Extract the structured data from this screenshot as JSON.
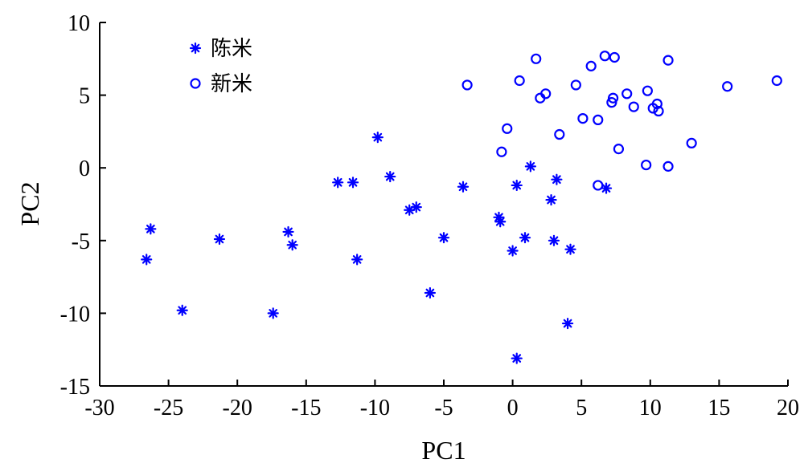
{
  "chart_data": {
    "type": "scatter",
    "xlabel": "PC1",
    "ylabel": "PC2",
    "xlim": [
      -30,
      20
    ],
    "ylim": [
      -15,
      10
    ],
    "xticks": [
      -30,
      -25,
      -20,
      -15,
      -10,
      -5,
      0,
      5,
      10,
      15,
      20
    ],
    "yticks": [
      -15,
      -10,
      -5,
      0,
      5,
      10
    ],
    "grid": false,
    "legend_position": "top-left",
    "colors": {
      "marker": "#0000ff",
      "axis": "#000000"
    },
    "series": [
      {
        "name": "陈米",
        "marker": "asterisk",
        "points": [
          [
            -26.6,
            -6.3
          ],
          [
            -26.3,
            -4.2
          ],
          [
            -24.0,
            -9.8
          ],
          [
            -21.3,
            -4.9
          ],
          [
            -17.4,
            -10.0
          ],
          [
            -16.3,
            -4.4
          ],
          [
            -16.0,
            -5.3
          ],
          [
            -12.7,
            -1.0
          ],
          [
            -11.6,
            -1.0
          ],
          [
            -11.3,
            -6.3
          ],
          [
            -9.8,
            2.1
          ],
          [
            -8.9,
            -0.6
          ],
          [
            -7.5,
            -2.9
          ],
          [
            -7.0,
            -2.7
          ],
          [
            -6.0,
            -8.6
          ],
          [
            -5.0,
            -4.8
          ],
          [
            -3.6,
            -1.3
          ],
          [
            -1.0,
            -3.4
          ],
          [
            -0.9,
            -3.7
          ],
          [
            0.0,
            -5.7
          ],
          [
            0.3,
            -1.2
          ],
          [
            0.3,
            -13.1
          ],
          [
            0.9,
            -4.8
          ],
          [
            1.3,
            0.1
          ],
          [
            2.8,
            -2.2
          ],
          [
            3.0,
            -5.0
          ],
          [
            3.2,
            -0.8
          ],
          [
            4.0,
            -10.7
          ],
          [
            4.2,
            -5.6
          ],
          [
            6.8,
            -1.4
          ]
        ]
      },
      {
        "name": "新米",
        "marker": "circle",
        "points": [
          [
            -3.3,
            5.7
          ],
          [
            -0.8,
            1.1
          ],
          [
            -0.4,
            2.7
          ],
          [
            0.5,
            6.0
          ],
          [
            1.7,
            7.5
          ],
          [
            2.0,
            4.8
          ],
          [
            2.4,
            5.1
          ],
          [
            3.4,
            2.3
          ],
          [
            4.6,
            5.7
          ],
          [
            5.1,
            3.4
          ],
          [
            5.7,
            7.0
          ],
          [
            6.2,
            3.3
          ],
          [
            6.2,
            -1.2
          ],
          [
            6.7,
            7.7
          ],
          [
            7.2,
            4.5
          ],
          [
            7.3,
            4.8
          ],
          [
            7.4,
            7.6
          ],
          [
            7.7,
            1.3
          ],
          [
            8.3,
            5.1
          ],
          [
            8.8,
            4.2
          ],
          [
            9.7,
            0.2
          ],
          [
            9.8,
            5.3
          ],
          [
            10.2,
            4.1
          ],
          [
            10.5,
            4.4
          ],
          [
            10.6,
            3.9
          ],
          [
            11.3,
            0.1
          ],
          [
            11.3,
            7.4
          ],
          [
            13.0,
            1.7
          ],
          [
            15.6,
            5.6
          ],
          [
            19.2,
            6.0
          ]
        ]
      }
    ]
  }
}
